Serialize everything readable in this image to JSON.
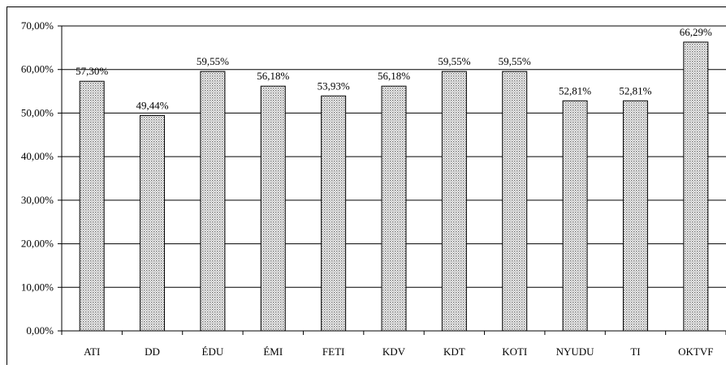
{
  "chart_data": {
    "type": "bar",
    "categories": [
      "ATI",
      "DD",
      "ÉDU",
      "ÉMI",
      "FETI",
      "KDV",
      "KDT",
      "KOTI",
      "NYUDU",
      "TI",
      "OKTVF"
    ],
    "values": [
      57.3,
      49.44,
      59.55,
      56.18,
      53.93,
      56.18,
      59.55,
      59.55,
      52.81,
      52.81,
      66.29
    ],
    "value_labels": [
      "57,30%",
      "49,44%",
      "59,55%",
      "56,18%",
      "53,93%",
      "56,18%",
      "59,55%",
      "59,55%",
      "52,81%",
      "52,81%",
      "66,29%"
    ],
    "color": "#9a9a9a",
    "ylim": [
      0,
      70
    ],
    "yticks": [
      {
        "value": 0,
        "label": "0,00%"
      },
      {
        "value": 10,
        "label": "10,00%"
      },
      {
        "value": 20,
        "label": "20,00%"
      },
      {
        "value": 30,
        "label": "30,00%"
      },
      {
        "value": 40,
        "label": "40,00%"
      },
      {
        "value": 50,
        "label": "50,00%"
      },
      {
        "value": 60,
        "label": "60,00%"
      },
      {
        "value": 70,
        "label": "70,00%"
      }
    ],
    "grid": true
  }
}
